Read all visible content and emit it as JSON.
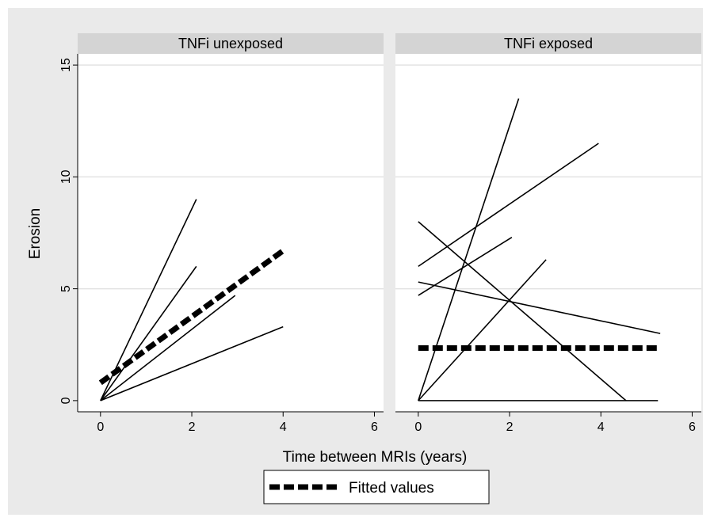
{
  "chart_data": {
    "type": "line",
    "ylabel": "Erosion",
    "xlabel": "Time between MRIs (years)",
    "xlim": [
      -0.5,
      6.2
    ],
    "ylim": [
      -0.5,
      15.5
    ],
    "xticks": [
      0,
      2,
      4,
      6
    ],
    "yticks": [
      0,
      5,
      10,
      15
    ],
    "grid": "horizontal",
    "legend": {
      "position": "bottom-center",
      "entries": [
        "Fitted values"
      ]
    },
    "panels": [
      {
        "title": "TNFi unexposed",
        "series": [
          {
            "x": [
              0,
              2.1
            ],
            "y": [
              0,
              9
            ]
          },
          {
            "x": [
              0,
              2.1
            ],
            "y": [
              0,
              6
            ]
          },
          {
            "x": [
              0,
              2.95
            ],
            "y": [
              0,
              4.7
            ]
          },
          {
            "x": [
              0,
              4.0
            ],
            "y": [
              0,
              3.3
            ]
          }
        ],
        "fitted": {
          "name": "Fitted values",
          "x": [
            0,
            4.0
          ],
          "y": [
            0.8,
            6.7
          ]
        }
      },
      {
        "title": "TNFi exposed",
        "series": [
          {
            "x": [
              0,
              2.2
            ],
            "y": [
              0,
              13.5
            ]
          },
          {
            "x": [
              0,
              3.95
            ],
            "y": [
              6.0,
              11.5
            ]
          },
          {
            "x": [
              0,
              2.05
            ],
            "y": [
              4.7,
              7.3
            ]
          },
          {
            "x": [
              0,
              4.55
            ],
            "y": [
              8.0,
              0
            ]
          },
          {
            "x": [
              0,
              2.8
            ],
            "y": [
              0,
              6.3
            ]
          },
          {
            "x": [
              0,
              5.3
            ],
            "y": [
              5.3,
              3.0
            ]
          },
          {
            "x": [
              0,
              5.25
            ],
            "y": [
              0,
              0
            ]
          }
        ],
        "fitted": {
          "name": "Fitted values",
          "x": [
            0,
            5.3
          ],
          "y": [
            2.35,
            2.35
          ]
        }
      }
    ]
  }
}
